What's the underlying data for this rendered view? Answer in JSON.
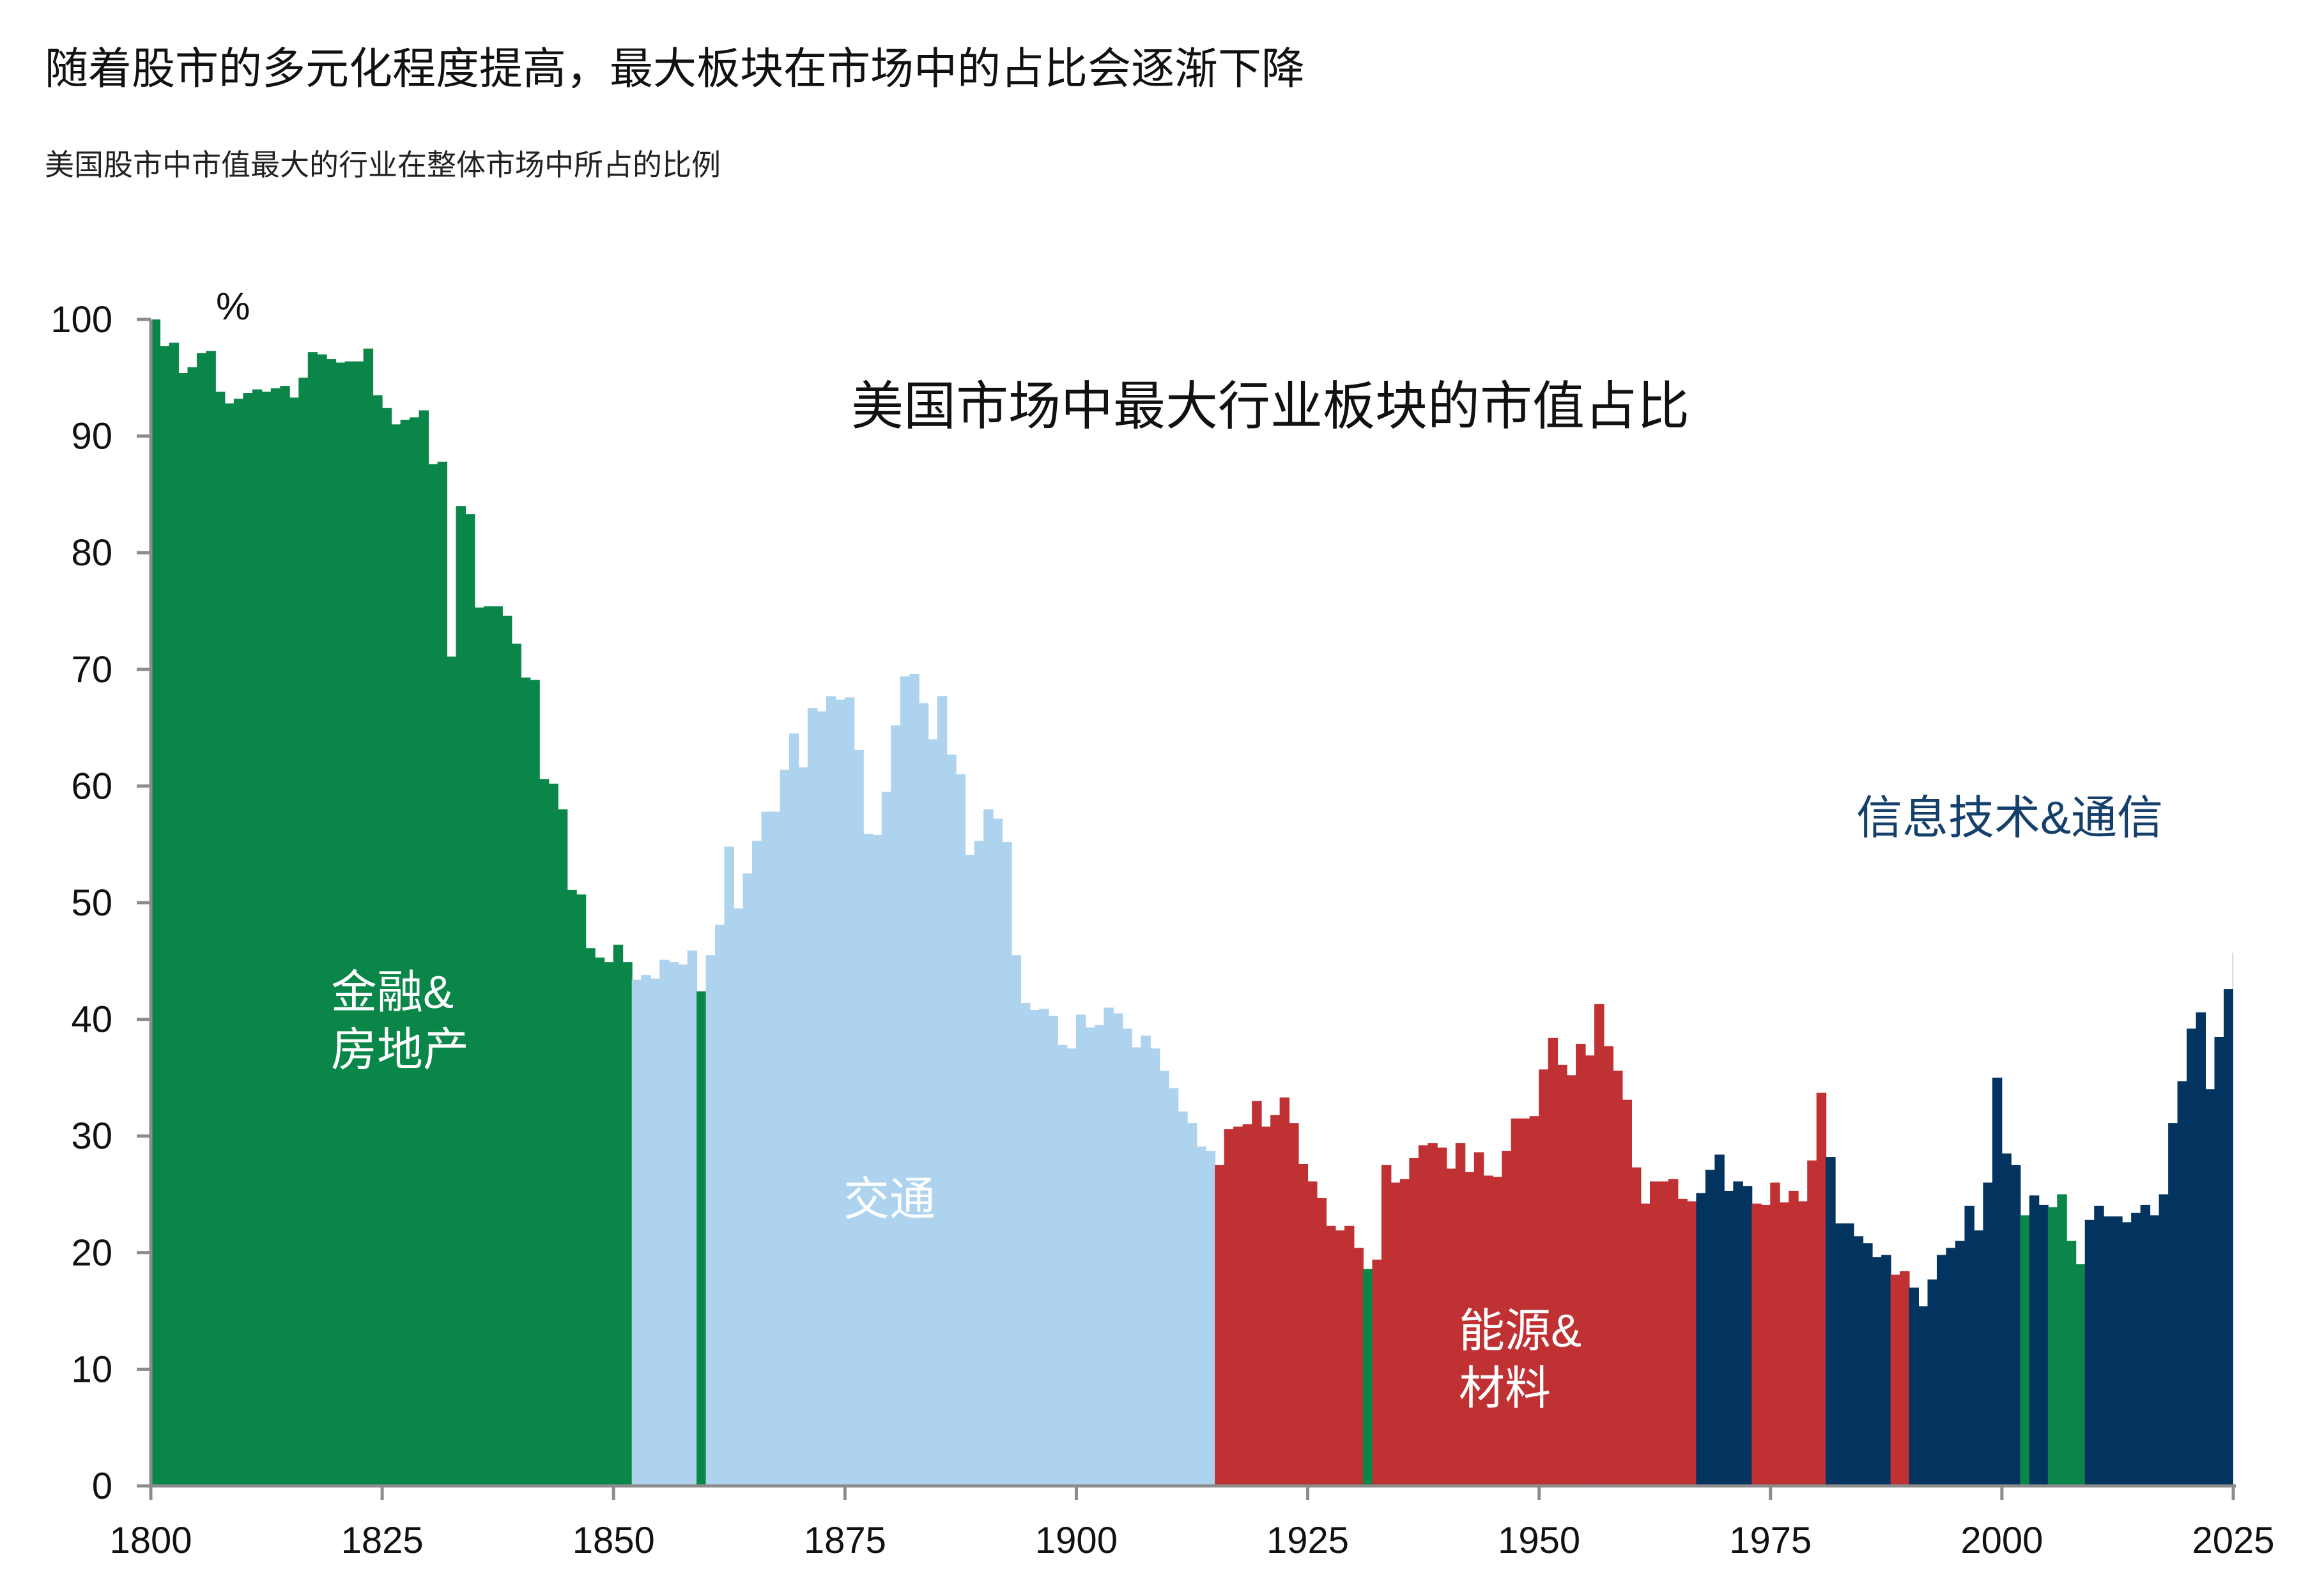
{
  "title": "随着股市的多元化程度提高，最大板块在市场中的占比会逐渐下降",
  "subtitle": "美国股市中市值最大的行业在整体市场中所占的比例",
  "chart_data": {
    "type": "bar",
    "title": "美国市场中最大行业板块的市值占比",
    "ylabel": "%",
    "xlim": [
      1800,
      2025
    ],
    "ylim": [
      0,
      100
    ],
    "xticks": [
      "1800",
      "1825",
      "1850",
      "1875",
      "1900",
      "1925",
      "1950",
      "1975",
      "2000",
      "2025"
    ],
    "yticks": [
      "0",
      "10",
      "20",
      "30",
      "40",
      "50",
      "60",
      "70",
      "80",
      "90",
      "100"
    ],
    "colors": {
      "金融&房地产": "#0A8748",
      "交通": "#AED3EF",
      "能源&材料": "#BF3133",
      "信息技术&通信": "#02345F"
    },
    "sector_labels": [
      {
        "sector": "金融&房地产",
        "lines": [
          "金融&",
          "房地产"
        ],
        "color": "#ffffff"
      },
      {
        "sector": "交通",
        "lines": [
          "交通"
        ],
        "color": "#ffffff"
      },
      {
        "sector": "能源&材料",
        "lines": [
          "能源&",
          "材料"
        ],
        "color": "#ffffff"
      },
      {
        "sector": "信息技术&通信",
        "lines": [
          "信息技术&通信"
        ],
        "color": "#15406B"
      }
    ],
    "series_sectors": [
      "金融&房地产",
      "交通",
      "能源&材料",
      "信息技术&通信"
    ],
    "data": [
      [
        1800,
        100.0,
        "金融&房地产"
      ],
      [
        1801,
        97.7,
        "金融&房地产"
      ],
      [
        1802,
        98.0,
        "金融&房地产"
      ],
      [
        1803,
        95.4,
        "金融&房地产"
      ],
      [
        1804,
        95.9,
        "金融&房地产"
      ],
      [
        1805,
        97.1,
        "金融&房地产"
      ],
      [
        1806,
        97.3,
        "金融&房地产"
      ],
      [
        1807,
        93.8,
        "金融&房地产"
      ],
      [
        1808,
        92.8,
        "金融&房地产"
      ],
      [
        1809,
        93.2,
        "金融&房地产"
      ],
      [
        1810,
        93.7,
        "金融&房地产"
      ],
      [
        1811,
        94.0,
        "金融&房地产"
      ],
      [
        1812,
        93.8,
        "金融&房地产"
      ],
      [
        1813,
        94.1,
        "金融&房地产"
      ],
      [
        1814,
        94.3,
        "金融&房地产"
      ],
      [
        1815,
        93.3,
        "金融&房地产"
      ],
      [
        1816,
        95.0,
        "金融&房地产"
      ],
      [
        1817,
        97.2,
        "金融&房地产"
      ],
      [
        1818,
        97.0,
        "金融&房地产"
      ],
      [
        1819,
        96.6,
        "金融&房地产"
      ],
      [
        1820,
        96.3,
        "金融&房地产"
      ],
      [
        1821,
        96.4,
        "金融&房地产"
      ],
      [
        1822,
        96.4,
        "金融&房地产"
      ],
      [
        1823,
        97.5,
        "金融&房地产"
      ],
      [
        1824,
        93.5,
        "金融&房地产"
      ],
      [
        1825,
        92.4,
        "金融&房地产"
      ],
      [
        1826,
        91.0,
        "金融&房地产"
      ],
      [
        1827,
        91.4,
        "金融&房地产"
      ],
      [
        1828,
        91.6,
        "金融&房地产"
      ],
      [
        1829,
        92.2,
        "金融&房地产"
      ],
      [
        1830,
        87.6,
        "金融&房地产"
      ],
      [
        1831,
        87.8,
        "金融&房地产"
      ],
      [
        1832,
        71.1,
        "金融&房地产"
      ],
      [
        1833,
        84.0,
        "金融&房地产"
      ],
      [
        1834,
        83.3,
        "金融&房地产"
      ],
      [
        1835,
        75.3,
        "金融&房地产"
      ],
      [
        1836,
        75.4,
        "金融&房地产"
      ],
      [
        1837,
        75.4,
        "金融&房地产"
      ],
      [
        1838,
        74.6,
        "金融&房地产"
      ],
      [
        1839,
        72.2,
        "金融&房地产"
      ],
      [
        1840,
        69.3,
        "金融&房地产"
      ],
      [
        1841,
        69.1,
        "金融&房地产"
      ],
      [
        1842,
        60.6,
        "金融&房地产"
      ],
      [
        1843,
        60.2,
        "金融&房地产"
      ],
      [
        1844,
        58.0,
        "金融&房地产"
      ],
      [
        1845,
        51.1,
        "金融&房地产"
      ],
      [
        1846,
        50.7,
        "金融&房地产"
      ],
      [
        1847,
        46.1,
        "金融&房地产"
      ],
      [
        1848,
        45.3,
        "金融&房地产"
      ],
      [
        1849,
        44.9,
        "金融&房地产"
      ],
      [
        1850,
        46.4,
        "金融&房地产"
      ],
      [
        1851,
        44.9,
        "金融&房地产"
      ],
      [
        1852,
        43.4,
        "交通"
      ],
      [
        1853,
        43.8,
        "交通"
      ],
      [
        1854,
        43.5,
        "交通"
      ],
      [
        1855,
        45.1,
        "交通"
      ],
      [
        1856,
        44.9,
        "交通"
      ],
      [
        1857,
        44.7,
        "交通"
      ],
      [
        1858,
        45.9,
        "交通"
      ],
      [
        1859,
        42.4,
        "金融&房地产"
      ],
      [
        1860,
        45.5,
        "交通"
      ],
      [
        1861,
        48.1,
        "交通"
      ],
      [
        1862,
        54.8,
        "交通"
      ],
      [
        1863,
        49.5,
        "交通"
      ],
      [
        1864,
        52.5,
        "交通"
      ],
      [
        1865,
        55.3,
        "交通"
      ],
      [
        1866,
        57.8,
        "交通"
      ],
      [
        1867,
        57.8,
        "交通"
      ],
      [
        1868,
        61.4,
        "交通"
      ],
      [
        1869,
        64.5,
        "交通"
      ],
      [
        1870,
        61.6,
        "交通"
      ],
      [
        1871,
        66.7,
        "交通"
      ],
      [
        1872,
        66.4,
        "交通"
      ],
      [
        1873,
        67.7,
        "交通"
      ],
      [
        1874,
        67.4,
        "交通"
      ],
      [
        1875,
        67.6,
        "交通"
      ],
      [
        1876,
        63.1,
        "交通"
      ],
      [
        1877,
        55.9,
        "交通"
      ],
      [
        1878,
        55.8,
        "交通"
      ],
      [
        1879,
        59.5,
        "交通"
      ],
      [
        1880,
        65.2,
        "交通"
      ],
      [
        1881,
        69.4,
        "交通"
      ],
      [
        1882,
        69.6,
        "交通"
      ],
      [
        1883,
        67.1,
        "交通"
      ],
      [
        1884,
        64.0,
        "交通"
      ],
      [
        1885,
        67.7,
        "交通"
      ],
      [
        1886,
        62.7,
        "交通"
      ],
      [
        1887,
        61.0,
        "交通"
      ],
      [
        1888,
        54.1,
        "交通"
      ],
      [
        1889,
        55.3,
        "交通"
      ],
      [
        1890,
        58.0,
        "交通"
      ],
      [
        1891,
        57.2,
        "交通"
      ],
      [
        1892,
        55.2,
        "交通"
      ],
      [
        1893,
        45.5,
        "交通"
      ],
      [
        1894,
        41.4,
        "交通"
      ],
      [
        1895,
        40.8,
        "交通"
      ],
      [
        1896,
        40.9,
        "交通"
      ],
      [
        1897,
        40.3,
        "交通"
      ],
      [
        1898,
        37.8,
        "交通"
      ],
      [
        1899,
        37.5,
        "交通"
      ],
      [
        1900,
        40.4,
        "交通"
      ],
      [
        1901,
        39.3,
        "交通"
      ],
      [
        1902,
        39.5,
        "交通"
      ],
      [
        1903,
        41.0,
        "交通"
      ],
      [
        1904,
        40.5,
        "交通"
      ],
      [
        1905,
        39.2,
        "交通"
      ],
      [
        1906,
        37.6,
        "交通"
      ],
      [
        1907,
        38.6,
        "交通"
      ],
      [
        1908,
        37.5,
        "交通"
      ],
      [
        1909,
        35.6,
        "交通"
      ],
      [
        1910,
        34.1,
        "交通"
      ],
      [
        1911,
        32.1,
        "交通"
      ],
      [
        1912,
        31.1,
        "交通"
      ],
      [
        1913,
        29.1,
        "交通"
      ],
      [
        1914,
        28.7,
        "交通"
      ],
      [
        1915,
        27.5,
        "能源&材料"
      ],
      [
        1916,
        30.6,
        "能源&材料"
      ],
      [
        1917,
        30.8,
        "能源&材料"
      ],
      [
        1918,
        31.0,
        "能源&材料"
      ],
      [
        1919,
        33.0,
        "能源&材料"
      ],
      [
        1920,
        30.8,
        "能源&材料"
      ],
      [
        1921,
        31.8,
        "能源&材料"
      ],
      [
        1922,
        33.3,
        "能源&材料"
      ],
      [
        1923,
        31.1,
        "能源&材料"
      ],
      [
        1924,
        27.6,
        "能源&材料"
      ],
      [
        1925,
        26.1,
        "能源&材料"
      ],
      [
        1926,
        24.7,
        "能源&材料"
      ],
      [
        1927,
        22.3,
        "能源&材料"
      ],
      [
        1928,
        21.9,
        "能源&材料"
      ],
      [
        1929,
        22.3,
        "能源&材料"
      ],
      [
        1930,
        20.4,
        "能源&材料"
      ],
      [
        1931,
        18.6,
        "金融&房地产"
      ],
      [
        1932,
        19.4,
        "能源&材料"
      ],
      [
        1933,
        27.5,
        "能源&材料"
      ],
      [
        1934,
        26.0,
        "能源&材料"
      ],
      [
        1935,
        26.3,
        "能源&材料"
      ],
      [
        1936,
        28.1,
        "能源&材料"
      ],
      [
        1937,
        29.2,
        "能源&材料"
      ],
      [
        1938,
        29.4,
        "能源&材料"
      ],
      [
        1939,
        29.0,
        "能源&材料"
      ],
      [
        1940,
        27.2,
        "能源&材料"
      ],
      [
        1941,
        29.4,
        "能源&材料"
      ],
      [
        1942,
        26.9,
        "能源&材料"
      ],
      [
        1943,
        28.6,
        "能源&材料"
      ],
      [
        1944,
        26.6,
        "能源&材料"
      ],
      [
        1945,
        26.5,
        "能源&材料"
      ],
      [
        1946,
        28.7,
        "能源&材料"
      ],
      [
        1947,
        31.5,
        "能源&材料"
      ],
      [
        1948,
        31.5,
        "能源&材料"
      ],
      [
        1949,
        31.7,
        "能源&材料"
      ],
      [
        1950,
        35.7,
        "能源&材料"
      ],
      [
        1951,
        38.4,
        "能源&材料"
      ],
      [
        1952,
        36.1,
        "能源&材料"
      ],
      [
        1953,
        35.2,
        "能源&材料"
      ],
      [
        1954,
        37.9,
        "能源&材料"
      ],
      [
        1955,
        36.9,
        "能源&材料"
      ],
      [
        1956,
        41.3,
        "能源&材料"
      ],
      [
        1957,
        37.7,
        "能源&材料"
      ],
      [
        1958,
        35.6,
        "能源&材料"
      ],
      [
        1959,
        33.1,
        "能源&材料"
      ],
      [
        1960,
        27.3,
        "能源&材料"
      ],
      [
        1961,
        24.2,
        "能源&材料"
      ],
      [
        1962,
        26.1,
        "能源&材料"
      ],
      [
        1963,
        26.1,
        "能源&材料"
      ],
      [
        1964,
        26.3,
        "能源&材料"
      ],
      [
        1965,
        24.6,
        "能源&材料"
      ],
      [
        1966,
        24.4,
        "能源&材料"
      ],
      [
        1967,
        25.1,
        "信息技术&通信"
      ],
      [
        1968,
        27.1,
        "信息技术&通信"
      ],
      [
        1969,
        28.4,
        "信息技术&通信"
      ],
      [
        1970,
        25.3,
        "信息技术&通信"
      ],
      [
        1971,
        26.1,
        "信息技术&通信"
      ],
      [
        1972,
        25.7,
        "信息技术&通信"
      ],
      [
        1973,
        24.2,
        "能源&材料"
      ],
      [
        1974,
        24.1,
        "能源&材料"
      ],
      [
        1975,
        26.0,
        "能源&材料"
      ],
      [
        1976,
        24.3,
        "能源&材料"
      ],
      [
        1977,
        25.3,
        "能源&材料"
      ],
      [
        1978,
        24.4,
        "能源&材料"
      ],
      [
        1979,
        27.9,
        "能源&材料"
      ],
      [
        1980,
        33.7,
        "能源&材料"
      ],
      [
        1981,
        28.2,
        "信息技术&通信"
      ],
      [
        1982,
        22.5,
        "信息技术&通信"
      ],
      [
        1983,
        22.5,
        "信息技术&通信"
      ],
      [
        1984,
        21.4,
        "信息技术&通信"
      ],
      [
        1985,
        20.8,
        "信息技术&通信"
      ],
      [
        1986,
        19.6,
        "信息技术&通信"
      ],
      [
        1987,
        19.8,
        "信息技术&通信"
      ],
      [
        1988,
        18.1,
        "能源&材料"
      ],
      [
        1989,
        18.4,
        "能源&材料"
      ],
      [
        1990,
        17.0,
        "信息技术&通信"
      ],
      [
        1991,
        15.4,
        "信息技术&通信"
      ],
      [
        1992,
        17.7,
        "信息技术&通信"
      ],
      [
        1993,
        19.8,
        "信息技术&通信"
      ],
      [
        1994,
        20.4,
        "信息技术&通信"
      ],
      [
        1995,
        21.0,
        "信息技术&通信"
      ],
      [
        1996,
        24.0,
        "信息技术&通信"
      ],
      [
        1997,
        21.9,
        "信息技术&通信"
      ],
      [
        1998,
        26.0,
        "信息技术&通信"
      ],
      [
        1999,
        35.0,
        "信息技术&通信"
      ],
      [
        2000,
        28.5,
        "信息技术&通信"
      ],
      [
        2001,
        27.5,
        "信息技术&通信"
      ],
      [
        2002,
        23.2,
        "金融&房地产"
      ],
      [
        2003,
        24.9,
        "信息技术&通信"
      ],
      [
        2004,
        24.1,
        "信息技术&通信"
      ],
      [
        2005,
        23.9,
        "金融&房地产"
      ],
      [
        2006,
        25.0,
        "金融&房地产"
      ],
      [
        2007,
        21.0,
        "金融&房地产"
      ],
      [
        2008,
        19.0,
        "金融&房地产"
      ],
      [
        2009,
        22.8,
        "信息技术&通信"
      ],
      [
        2010,
        24.0,
        "信息技术&通信"
      ],
      [
        2011,
        23.1,
        "信息技术&通信"
      ],
      [
        2012,
        23.1,
        "信息技术&通信"
      ],
      [
        2013,
        22.6,
        "信息技术&通信"
      ],
      [
        2014,
        23.4,
        "信息技术&通信"
      ],
      [
        2015,
        24.1,
        "信息技术&通信"
      ],
      [
        2016,
        23.2,
        "信息技术&通信"
      ],
      [
        2017,
        25.0,
        "信息技术&通信"
      ],
      [
        2018,
        31.1,
        "信息技术&通信"
      ],
      [
        2019,
        34.7,
        "信息技术&通信"
      ],
      [
        2020,
        39.2,
        "信息技术&通信"
      ],
      [
        2021,
        40.6,
        "信息技术&通信"
      ],
      [
        2022,
        34.0,
        "信息技术&通信"
      ],
      [
        2023,
        38.5,
        "信息技术&通信"
      ],
      [
        2024,
        42.6,
        "信息技术&通信"
      ],
      [
        2025,
        45.7,
        "信息技术&通信"
      ]
    ]
  }
}
